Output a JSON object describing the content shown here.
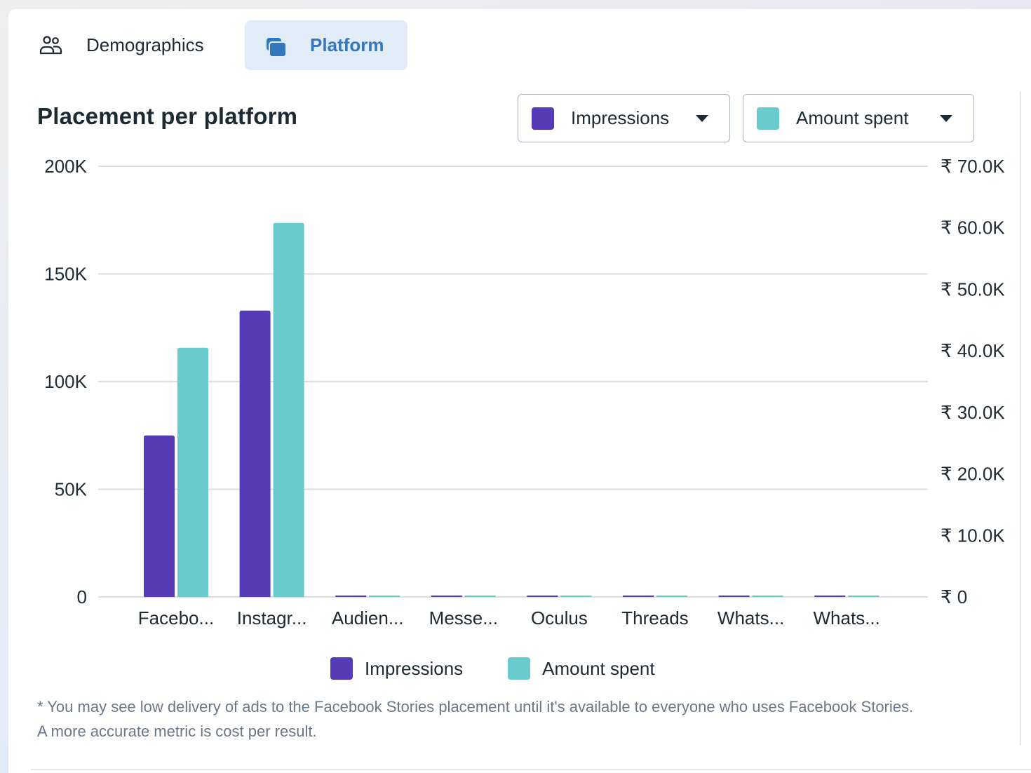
{
  "tabs": [
    {
      "label": "Demographics",
      "icon": "people-icon",
      "active": false
    },
    {
      "label": "Platform",
      "icon": "platform-stack-icon",
      "active": true
    }
  ],
  "colors": {
    "impressions": "#573bb6",
    "amount_spent": "#6acbcc",
    "active_tab_bg": "#e2ecf6",
    "active_tab_text": "#3577bd"
  },
  "dropdowns": [
    {
      "label": "Impressions",
      "color": "#573bb6",
      "icon": "caret-down-icon"
    },
    {
      "label": "Amount spent",
      "color": "#6acbcc",
      "icon": "caret-down-icon"
    }
  ],
  "chart_data": {
    "type": "bar",
    "title": "Placement per platform",
    "categories": [
      "Facebo...",
      "Instagr...",
      "Audien...",
      "Messe...",
      "Oculus",
      "Threads",
      "Whats...",
      "Whats..."
    ],
    "series": [
      {
        "name": "Impressions",
        "axis": "left",
        "values": [
          75000,
          133000,
          0,
          0,
          0,
          0,
          0,
          0
        ]
      },
      {
        "name": "Amount spent",
        "axis": "right",
        "values": [
          40500,
          60800,
          0,
          0,
          0,
          0,
          0,
          0
        ]
      }
    ],
    "y_left": {
      "ylim": [
        0,
        200000
      ],
      "ticks": [
        {
          "value": 0,
          "label": "0"
        },
        {
          "value": 50000,
          "label": "50K"
        },
        {
          "value": 100000,
          "label": "100K"
        },
        {
          "value": 150000,
          "label": "150K"
        },
        {
          "value": 200000,
          "label": "200K"
        }
      ]
    },
    "y_right": {
      "ylim": [
        0,
        70000
      ],
      "ticks": [
        {
          "value": 0,
          "label": "₹ 0"
        },
        {
          "value": 10000,
          "label": "₹ 10.0K"
        },
        {
          "value": 20000,
          "label": "₹ 20.0K"
        },
        {
          "value": 30000,
          "label": "₹ 30.0K"
        },
        {
          "value": 40000,
          "label": "₹ 40.0K"
        },
        {
          "value": 50000,
          "label": "₹ 50.0K"
        },
        {
          "value": 60000,
          "label": "₹ 60.0K"
        },
        {
          "value": 70000,
          "label": "₹ 70.0K"
        }
      ]
    },
    "grid": true,
    "legend": {
      "position": "bottom",
      "items": [
        "Impressions",
        "Amount spent"
      ]
    }
  },
  "footnote": {
    "line1": "* You may see low delivery of ads to the Facebook Stories placement until it's available to everyone who uses Facebook Stories.",
    "line2": "A more accurate metric is cost per result."
  }
}
